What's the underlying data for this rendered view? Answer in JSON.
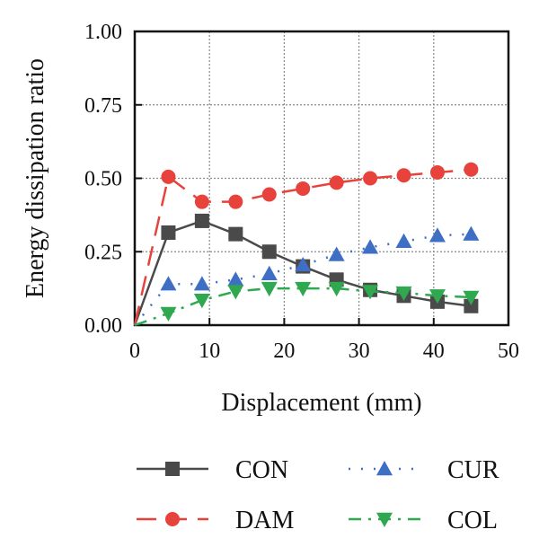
{
  "chart_data": {
    "type": "line",
    "xlabel": "Displacement (mm)",
    "ylabel": "Energy dissipation ratio",
    "xlim": [
      0,
      50
    ],
    "ylim": [
      0,
      1.0
    ],
    "x_ticks": [
      "0",
      "10",
      "20",
      "30",
      "40",
      "50"
    ],
    "y_ticks": [
      "0.00",
      "0.25",
      "0.50",
      "0.75",
      "1.00"
    ],
    "grid": true,
    "legend_position": "bottom",
    "series": [
      {
        "name": "CON",
        "color": "#4a4a4a",
        "marker": "square",
        "line_style": "solid",
        "x": [
          0,
          4.5,
          9,
          13.5,
          18,
          22.5,
          27,
          31.5,
          36,
          40.5,
          45
        ],
        "y": [
          0.0,
          0.315,
          0.355,
          0.31,
          0.25,
          0.2,
          0.155,
          0.12,
          0.1,
          0.08,
          0.065
        ]
      },
      {
        "name": "DAM",
        "color": "#e8423c",
        "marker": "circle",
        "line_style": "dashed",
        "x": [
          0,
          4.5,
          9,
          13.5,
          18,
          22.5,
          27,
          31.5,
          36,
          40.5,
          45
        ],
        "y": [
          0.0,
          0.505,
          0.42,
          0.42,
          0.445,
          0.465,
          0.485,
          0.5,
          0.51,
          0.52,
          0.53
        ]
      },
      {
        "name": "CUR",
        "color": "#3e6fc4",
        "marker": "triangle-up",
        "line_style": "dotted",
        "x": [
          0,
          4.5,
          9,
          13.5,
          18,
          22.5,
          27,
          31.5,
          36,
          40.5,
          45
        ],
        "y": [
          0.0,
          0.14,
          0.14,
          0.155,
          0.175,
          0.205,
          0.24,
          0.265,
          0.285,
          0.305,
          0.31
        ]
      },
      {
        "name": "COL",
        "color": "#2fa84f",
        "marker": "triangle-down",
        "line_style": "dash-dot",
        "x": [
          0,
          4.5,
          9,
          13.5,
          18,
          22.5,
          27,
          31.5,
          36,
          40.5,
          45
        ],
        "y": [
          0.0,
          0.04,
          0.085,
          0.115,
          0.125,
          0.125,
          0.125,
          0.115,
          0.11,
          0.1,
          0.095
        ]
      }
    ]
  }
}
